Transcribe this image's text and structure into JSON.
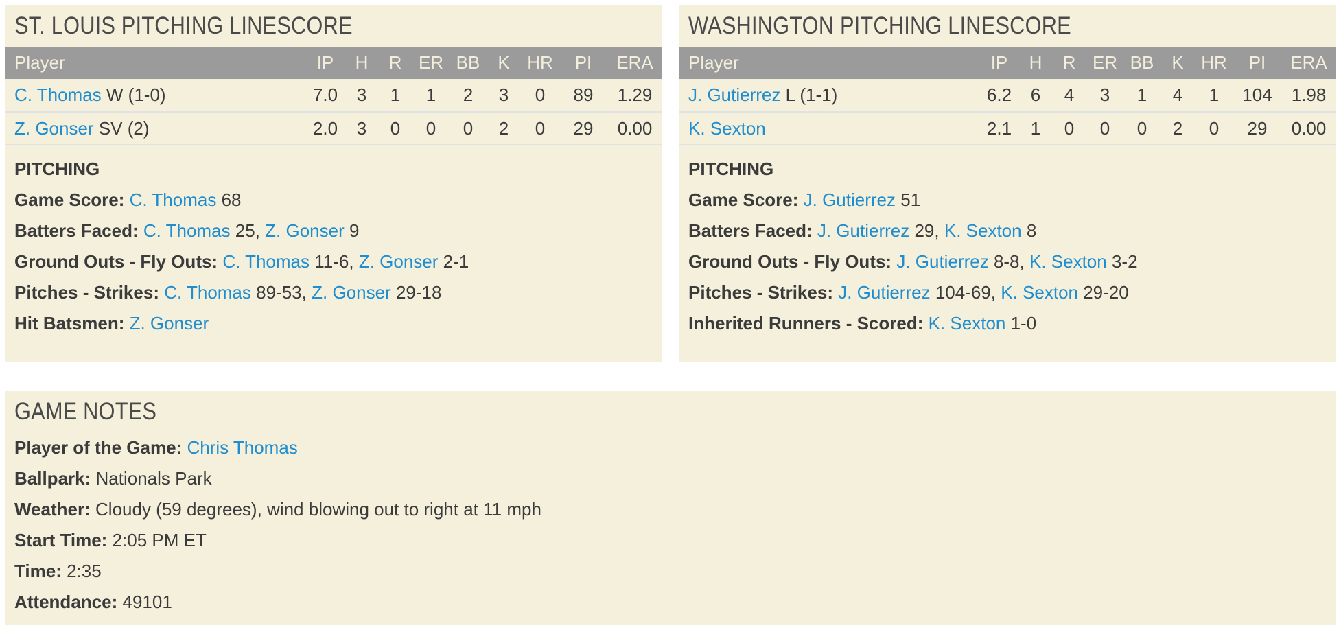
{
  "colors": {
    "panel_bg": "#f5f0dc",
    "header_bar": "#9b9b9b",
    "header_text": "#f3efdc",
    "body_text": "#3b3b3b",
    "title_text": "#4a4a4a",
    "link_blue": "#1f8dce",
    "row_divider": "#dee3e6",
    "page_bg": "#ffffff"
  },
  "table_columns": [
    "Player",
    "IP",
    "H",
    "R",
    "ER",
    "BB",
    "K",
    "HR",
    "PI",
    "ERA"
  ],
  "stl": {
    "title": "ST. LOUIS PITCHING LINESCORE",
    "rows": [
      {
        "player": "C. Thomas",
        "note": "W (1-0)",
        "stats": [
          "7.0",
          "3",
          "1",
          "1",
          "2",
          "3",
          "0",
          "89",
          "1.29"
        ]
      },
      {
        "player": "Z. Gonser",
        "note": "SV (2)",
        "stats": [
          "2.0",
          "3",
          "0",
          "0",
          "0",
          "2",
          "0",
          "29",
          "0.00"
        ]
      }
    ],
    "section_title": "PITCHING",
    "notes": [
      {
        "label": "Game Score:",
        "l1": "C. Thomas",
        "t1": "68"
      },
      {
        "label": "Batters Faced:",
        "l1": "C. Thomas",
        "t1": "25,",
        "l2": "Z. Gonser",
        "t2": "9"
      },
      {
        "label": "Ground Outs - Fly Outs:",
        "l1": "C. Thomas",
        "t1": "11-6,",
        "l2": "Z. Gonser",
        "t2": "2-1"
      },
      {
        "label": "Pitches - Strikes:",
        "l1": "C. Thomas",
        "t1": "89-53,",
        "l2": "Z. Gonser",
        "t2": "29-18"
      },
      {
        "label": "Hit Batsmen:",
        "l1": "Z. Gonser"
      }
    ]
  },
  "wsh": {
    "title": "WASHINGTON PITCHING LINESCORE",
    "rows": [
      {
        "player": "J. Gutierrez",
        "note": "L (1-1)",
        "stats": [
          "6.2",
          "6",
          "4",
          "3",
          "1",
          "4",
          "1",
          "104",
          "1.98"
        ]
      },
      {
        "player": "K. Sexton",
        "note": "",
        "stats": [
          "2.1",
          "1",
          "0",
          "0",
          "0",
          "2",
          "0",
          "29",
          "0.00"
        ]
      }
    ],
    "section_title": "PITCHING",
    "notes": [
      {
        "label": "Game Score:",
        "l1": "J. Gutierrez",
        "t1": "51"
      },
      {
        "label": "Batters Faced:",
        "l1": "J. Gutierrez",
        "t1": "29,",
        "l2": "K. Sexton",
        "t2": "8"
      },
      {
        "label": "Ground Outs - Fly Outs:",
        "l1": "J. Gutierrez",
        "t1": "8-8,",
        "l2": "K. Sexton",
        "t2": "3-2"
      },
      {
        "label": "Pitches - Strikes:",
        "l1": "J. Gutierrez",
        "t1": "104-69,",
        "l2": "K. Sexton",
        "t2": "29-20"
      },
      {
        "label": "Inherited Runners - Scored:",
        "l1": "K. Sexton",
        "t1": "1-0"
      }
    ]
  },
  "game_notes": {
    "title": "GAME NOTES",
    "lines": [
      {
        "label": "Player of the Game:",
        "l1": "Chris Thomas"
      },
      {
        "label": "Ballpark:",
        "t1": "Nationals Park"
      },
      {
        "label": "Weather:",
        "t1": "Cloudy (59 degrees), wind blowing out to right at 11 mph"
      },
      {
        "label": "Start Time:",
        "t1": "2:05 PM ET"
      },
      {
        "label": "Time:",
        "t1": "2:35"
      },
      {
        "label": "Attendance:",
        "t1": "49101"
      }
    ]
  }
}
